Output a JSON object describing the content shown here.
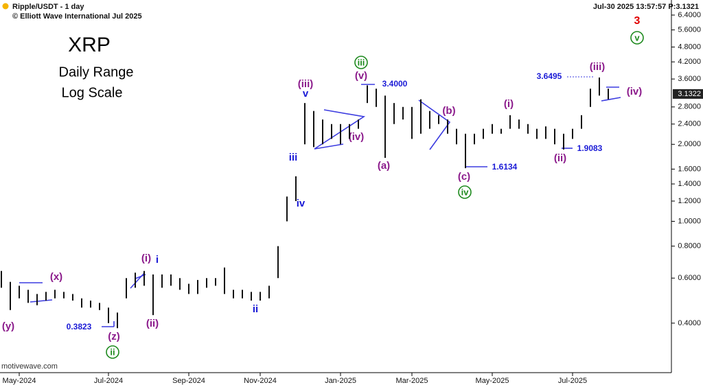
{
  "chart_data": {
    "type": "ohlc",
    "header": {
      "symbol": "Ripple/USDT - 1 day",
      "copyright": "© Elliott Wave International Jul 2025",
      "status": "Jul-30 2025  13:57:57  P:3.1321"
    },
    "title": "XRP",
    "subtitle": "Daily Range",
    "scale_note": "Log Scale",
    "watermark": "motivewave.com",
    "price_label": "3.1322",
    "log_scale": true,
    "color": "#111111",
    "categories": [
      null,
      null,
      "May-2024",
      null,
      null,
      null,
      null,
      null,
      null,
      null,
      null,
      null,
      "Jul-2024",
      null,
      null,
      null,
      null,
      null,
      null,
      null,
      null,
      "Sep-2024",
      null,
      null,
      null,
      null,
      null,
      null,
      null,
      "Nov-2024",
      null,
      null,
      null,
      null,
      null,
      null,
      null,
      null,
      "Jan-2025",
      null,
      null,
      null,
      null,
      null,
      null,
      null,
      "Mar-2025",
      null,
      null,
      null,
      null,
      null,
      null,
      null,
      null,
      "May-2025",
      null,
      null,
      null,
      null,
      null,
      null,
      null,
      null,
      "Jul-2025",
      null,
      null,
      null,
      null
    ],
    "high": [
      0.64,
      0.58,
      0.56,
      0.54,
      0.52,
      0.53,
      0.54,
      0.53,
      0.52,
      0.5,
      0.49,
      0.48,
      0.46,
      0.44,
      0.6,
      0.63,
      0.64,
      0.62,
      0.62,
      0.62,
      0.6,
      0.57,
      0.59,
      0.6,
      0.6,
      0.66,
      0.54,
      0.54,
      0.53,
      0.53,
      0.56,
      0.8,
      1.25,
      1.5,
      2.9,
      2.7,
      2.5,
      2.4,
      2.4,
      2.4,
      2.5,
      3.4,
      3.3,
      3.1,
      2.9,
      2.8,
      2.8,
      3.0,
      2.7,
      2.6,
      2.5,
      2.3,
      2.2,
      2.2,
      2.3,
      2.4,
      2.3,
      2.6,
      2.5,
      2.4,
      2.3,
      2.35,
      2.3,
      2.2,
      2.3,
      2.6,
      3.3,
      3.6495,
      3.3
    ],
    "low": [
      0.55,
      0.45,
      0.5,
      0.48,
      0.47,
      0.49,
      0.5,
      0.5,
      0.49,
      0.46,
      0.46,
      0.45,
      0.4,
      0.3823,
      0.5,
      0.55,
      0.56,
      0.43,
      0.55,
      0.56,
      0.54,
      0.52,
      0.52,
      0.55,
      0.56,
      0.52,
      0.5,
      0.5,
      0.49,
      0.49,
      0.5,
      0.6,
      1.0,
      1.2,
      2.0,
      1.95,
      2.0,
      2.1,
      2.0,
      2.1,
      2.3,
      2.9,
      2.8,
      1.77,
      2.4,
      2.5,
      2.1,
      2.2,
      2.3,
      2.4,
      2.2,
      2.0,
      1.6134,
      2.0,
      2.1,
      2.2,
      2.2,
      2.3,
      2.3,
      2.2,
      2.1,
      2.1,
      2.0,
      1.9083,
      2.1,
      2.3,
      2.8,
      3.1,
      3.0
    ],
    "ylim": [
      0.261,
      7.33
    ],
    "yticks": [
      {
        "value": 0.4,
        "label": "0.4000"
      },
      {
        "value": 0.6,
        "label": "0.6000"
      },
      {
        "value": 0.8,
        "label": "0.8000"
      },
      {
        "value": 1.0,
        "label": "1.0000"
      },
      {
        "value": 1.2,
        "label": "1.2000"
      },
      {
        "value": 1.4,
        "label": "1.4000"
      },
      {
        "value": 1.6,
        "label": "1.6000"
      },
      {
        "value": 2.0,
        "label": "2.0000"
      },
      {
        "value": 2.4,
        "label": "2.4000"
      },
      {
        "value": 2.8,
        "label": "2.8000"
      },
      {
        "value": 3.6,
        "label": "3.6000"
      },
      {
        "value": 4.2,
        "label": "4.2000"
      },
      {
        "value": 4.8,
        "label": "4.8000"
      },
      {
        "value": 5.6,
        "label": "5.6000"
      },
      {
        "value": 6.4,
        "label": "6.4000"
      }
    ],
    "annotations": [
      "(y)",
      "(x)",
      "0.3823",
      "(z)",
      "ii",
      "(i)",
      "i",
      "(ii)",
      "ii",
      "iv",
      "iii",
      "v",
      "(iii)",
      "(iv)",
      "(v)",
      "iii",
      "3.4000",
      "(a)",
      "(b)",
      "(c)",
      "iv",
      "1.6134",
      "(i)",
      "(ii)",
      "1.9083",
      "3.6495",
      "(iii)",
      "(iv)",
      "3",
      "v"
    ]
  }
}
